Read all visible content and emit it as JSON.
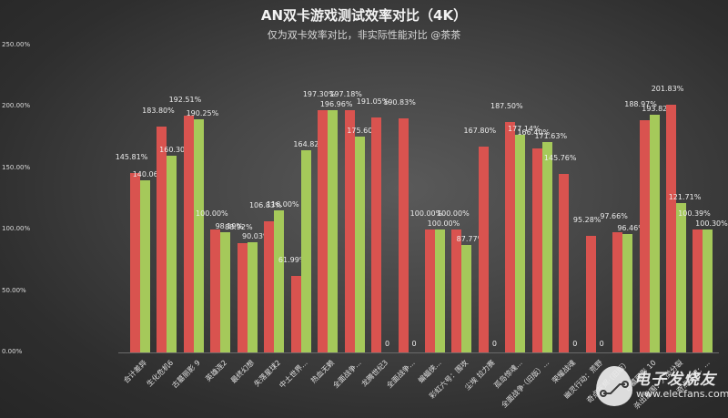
{
  "title": "AN双卡游戏测试效率对比（4K）",
  "subtitle": "仅为双卡效率对比，非实际性能对比 @茶茶",
  "watermark": {
    "cn": "电子发烧友",
    "url": "www.elecfans.com"
  },
  "colors": {
    "series1": "#d9534f",
    "series2": "#a5c95a",
    "background": "#3c3c3c"
  },
  "y_ticks": [
    "250.00%",
    "200.00%",
    "150.00%",
    "100.00%",
    "50.00%",
    "0.00%"
  ],
  "chart_data": {
    "type": "bar",
    "title": "AN双卡游戏测试效率对比（4K）",
    "subtitle": "仅为双卡效率对比，非实际性能对比 @茶茶",
    "xlabel": "",
    "ylabel": "",
    "ylim": [
      0,
      250
    ],
    "y_tick_format": "percent",
    "grid": false,
    "legend": null,
    "categories": [
      "合计差异",
      "生化危机6",
      "古墓丽影 9",
      "英雄连2",
      "最终幻想",
      "失落星球2",
      "中土世界...",
      "热血无赖",
      "全面战争...",
      "龙腾世纪3",
      "全面战争...",
      "蝙蝠侠...",
      "彩虹六号：围攻",
      "尘埃 拉力赛",
      "孤岛惊魂...",
      "全面战争·（旧版）...",
      "荣耀战魂",
      "幽灵行动：荒野",
      "奇点灰烬·（旧版）",
      "古墓丽影 10",
      "杀出重围：人类分裂",
      "奇点灰烬：..."
    ],
    "series": [
      {
        "name": "red",
        "values": [
          145.81,
          183.8,
          192.51,
          100.0,
          88.92,
          106.83,
          61.99,
          197.3,
          197.18,
          191.05,
          190.83,
          100.0,
          100.0,
          167.8,
          187.5,
          166.4,
          145.76,
          95.28,
          97.66,
          188.97,
          201.83,
          100.39
        ],
        "labels": [
          "145.81%",
          "183.80%",
          "192.51%",
          "100.00%",
          "88.92%",
          "106.83%",
          "61.99%",
          "197.30%",
          "197.18%",
          "191.05%",
          "190.83%",
          "100.00%",
          "100.00%",
          "167.80%",
          "187.50%",
          "166.40%",
          "145.76%",
          "95.28%",
          "97.66%",
          "188.97%",
          "201.83%",
          "100.39%"
        ]
      },
      {
        "name": "green",
        "values": [
          140.06,
          160.3,
          190.25,
          98.19,
          90.03,
          116.0,
          164.82,
          196.96,
          175.6,
          0,
          0,
          100.0,
          87.77,
          0,
          177.14,
          171.63,
          0,
          0,
          96.46,
          193.82,
          121.71,
          100.3
        ],
        "labels": [
          "140.06%",
          "160.30%",
          "190.25%",
          "98.19%",
          "90.03%",
          "116.00%",
          "164.82%",
          "196.96%",
          "175.60%",
          "0",
          "0",
          "100.00%",
          "87.77%",
          "0",
          "177.14%",
          "171.63%",
          "0",
          "0",
          "96.46%",
          "193.82%",
          "121.71%",
          "100.30%"
        ]
      }
    ]
  }
}
